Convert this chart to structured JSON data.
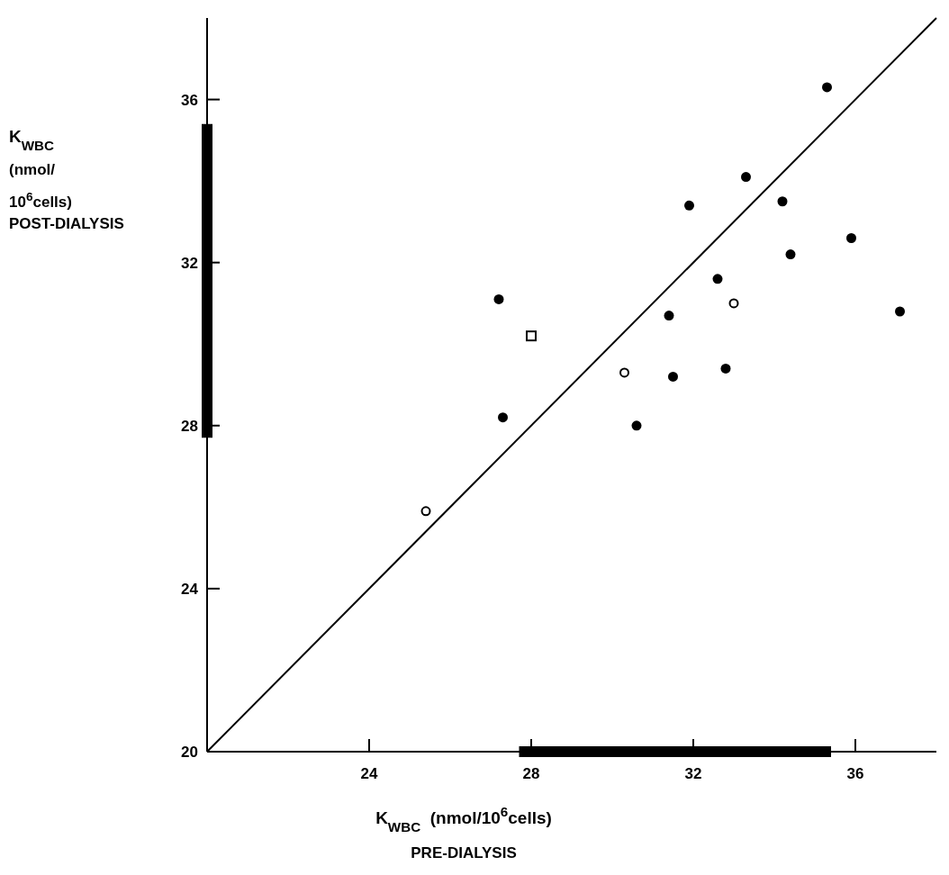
{
  "chart_data": {
    "type": "scatter",
    "xlabel": "K$_{WBC}$  (nmol/10$^{6}$cells)\nPRE-DIALYSIS",
    "ylabel": "K$_{WBC}$\n(nmol/\n10$^{6}$cells)\nPOST-DIALYSIS",
    "xlim": [
      20,
      38
    ],
    "ylim": [
      20,
      38
    ],
    "xticks": [
      24,
      28,
      32,
      36
    ],
    "yticks": [
      20,
      24,
      28,
      32,
      36
    ],
    "grid": false,
    "series": [
      {
        "type": "line",
        "color": "#000000",
        "x": [
          20,
          38
        ],
        "values": [
          20,
          38
        ],
        "line_style": "solid"
      },
      {
        "type": "line",
        "color": "#000000",
        "x": [
          20,
          20
        ],
        "values": [
          27.7,
          35.4
        ],
        "line_style": "solid"
      },
      {
        "type": "line",
        "color": "#000000",
        "x": [
          27.7,
          35.4
        ],
        "values": [
          20,
          20
        ],
        "line_style": "solid"
      },
      {
        "color": "#000000",
        "marker": "circle",
        "x": [
          35.3,
          33.3,
          31.9,
          34.2,
          35.9,
          34.4,
          32.6,
          27.2,
          31.4,
          37.1,
          31.5,
          32.8,
          27.3,
          30.6
        ],
        "values": [
          36.3,
          34.1,
          33.4,
          33.5,
          32.6,
          32.2,
          31.6,
          31.1,
          30.7,
          30.8,
          29.2,
          29.4,
          28.2,
          28.0
        ]
      },
      {
        "color": "#ffffff",
        "marker": "circle",
        "x": [
          33.0,
          30.3,
          25.4
        ],
        "values": [
          31.0,
          29.3,
          25.9
        ]
      },
      {
        "color": "#ffffff",
        "marker": "square",
        "x": [
          28.0
        ],
        "values": [
          30.2
        ]
      }
    ]
  }
}
